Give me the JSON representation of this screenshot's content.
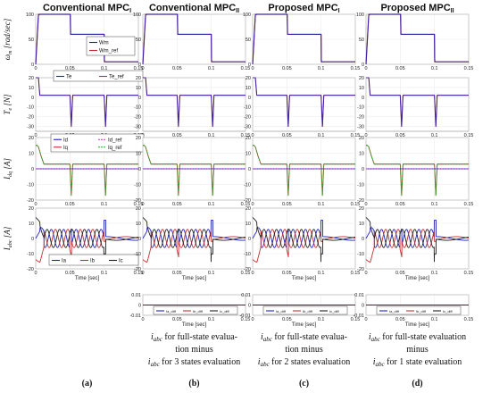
{
  "colors": {
    "blue": "#2020c0",
    "red": "#c03030",
    "dark": "#202020",
    "green": "#22aa22",
    "magenta": "#cc33cc"
  },
  "figure": {
    "columns": [
      {
        "title": "Conventional MPC",
        "subscript": "I",
        "letter": "(a)"
      },
      {
        "title": "Conventional MPC",
        "subscript": "II",
        "letter": "(b)"
      },
      {
        "title": "Proposed MPC",
        "subscript": "I",
        "letter": "(c)"
      },
      {
        "title": "Proposed MPC",
        "subscript": "II",
        "letter": "(d)"
      }
    ],
    "row_labels": [
      {
        "symbol": "ω",
        "sub": "m",
        "rest": " [rad/sec]"
      },
      {
        "symbol": "T",
        "sub": "e",
        "rest": " [N]"
      },
      {
        "symbol": "I",
        "sub": "dq",
        "rest": " [A]"
      },
      {
        "symbol": "I",
        "sub": "abc",
        "rest": " [A]"
      }
    ],
    "xlabel": "Time [sec]",
    "captions": [
      {
        "lines": [
          "full-state evalua-",
          "tion minus",
          "for 3 states evaluation"
        ]
      },
      {
        "lines": [
          "full-state evalua-",
          "tion minus",
          "for 2 states evaluation"
        ]
      },
      {
        "lines": [
          "full-state evaluation",
          "minus",
          "for 1 state evaluation"
        ]
      }
    ],
    "caption_symbol": "i",
    "caption_symbol_sub": "abc",
    "caption_for": "for"
  },
  "chart_data": [
    {
      "type": "line",
      "row": "speed",
      "xlim": [
        0,
        0.15
      ],
      "ylim": [
        0,
        100
      ],
      "xticks": [
        0,
        0.05,
        0.1,
        0.15
      ],
      "yticks": [
        0,
        50,
        100
      ],
      "series": [
        {
          "name": "Wm",
          "x": [
            0,
            0.004,
            0.006,
            0.02,
            0.0505,
            0.051,
            0.052,
            0.1,
            0.1003,
            0.101,
            0.15
          ],
          "y": [
            0,
            98,
            100,
            100,
            100,
            60,
            60,
            60,
            10,
            5,
            5
          ]
        },
        {
          "name": "Wm_ref",
          "x": [
            0,
            0.004,
            0.006,
            0.02,
            0.0505,
            0.051,
            0.052,
            0.1,
            0.1003,
            0.101,
            0.15
          ],
          "y": [
            0,
            100,
            100,
            100,
            100,
            60,
            60,
            60,
            5,
            5,
            5
          ]
        }
      ],
      "legend": "center-right"
    },
    {
      "type": "line",
      "row": "torque",
      "xlim": [
        0,
        0.15
      ],
      "ylim": [
        -35,
        20
      ],
      "xticks": [
        0,
        0.05,
        0.1,
        0.15
      ],
      "yticks": [
        -30,
        -20,
        -10,
        0,
        10,
        20
      ],
      "series": [
        {
          "name": "Te",
          "x": [
            0,
            0.001,
            0.004,
            0.006,
            0.048,
            0.05,
            0.052,
            0.054,
            0.098,
            0.1,
            0.102,
            0.104,
            0.15
          ],
          "y": [
            20,
            20,
            20,
            2,
            2,
            2,
            -30,
            2,
            2,
            2,
            -30,
            2,
            2
          ]
        },
        {
          "name": "Te_ref",
          "x": [
            0,
            0.001,
            0.004,
            0.006,
            0.048,
            0.05,
            0.052,
            0.054,
            0.098,
            0.1,
            0.102,
            0.104,
            0.15
          ],
          "y": [
            20,
            20,
            20,
            2,
            2,
            2,
            -30,
            2,
            2,
            2,
            -30,
            2,
            2
          ]
        }
      ],
      "legend": "top"
    },
    {
      "type": "line",
      "row": "dq-currents",
      "xlim": [
        0,
        0.15
      ],
      "ylim": [
        -20,
        20
      ],
      "xticks": [
        0,
        0.05,
        0.1,
        0.15
      ],
      "yticks": [
        -20,
        -10,
        0,
        10,
        20
      ],
      "series": [
        {
          "name": "Id",
          "x": [
            0,
            0.15
          ],
          "y": [
            0,
            0
          ]
        },
        {
          "name": "Iq",
          "x": [
            0,
            0.002,
            0.004,
            0.008,
            0.012,
            0.05,
            0.052,
            0.054,
            0.1,
            0.102,
            0.104,
            0.15
          ],
          "y": [
            15,
            15,
            14,
            8,
            3,
            3,
            -17,
            3,
            3,
            -17,
            3,
            3
          ]
        },
        {
          "name": "Id_ref",
          "x": [
            0,
            0.15
          ],
          "y": [
            0,
            0
          ]
        },
        {
          "name": "Iq_ref",
          "x": [
            0,
            0.002,
            0.004,
            0.008,
            0.012,
            0.05,
            0.052,
            0.054,
            0.1,
            0.102,
            0.104,
            0.15
          ],
          "y": [
            15,
            15,
            14,
            8,
            3,
            3,
            -17,
            3,
            3,
            -17,
            3,
            3
          ]
        }
      ],
      "legend": "top"
    },
    {
      "type": "line",
      "row": "abc-currents",
      "xlim": [
        0,
        0.15
      ],
      "ylim": [
        -20,
        20
      ],
      "xticks": [
        0,
        0.05,
        0.1,
        0.15
      ],
      "yticks": [
        -20,
        -10,
        0,
        10,
        20
      ],
      "series": [
        {
          "name": "Ia"
        },
        {
          "name": "Ib"
        },
        {
          "name": "Ic"
        }
      ],
      "legend": "bottom"
    },
    {
      "type": "line",
      "row": "abc-difference",
      "xlim": [
        0,
        0.15
      ],
      "ylim": [
        -0.01,
        0.01
      ],
      "xticks": [
        0,
        0.05,
        0.1,
        0.15
      ],
      "yticks": [
        -0.01,
        0,
        0.01
      ],
      "series": [
        {
          "name": "Ia_diff",
          "x": [
            0,
            0.15
          ],
          "y": [
            0,
            0
          ]
        },
        {
          "name": "Ib_diff",
          "x": [
            0,
            0.15
          ],
          "y": [
            0,
            0
          ]
        },
        {
          "name": "Ic_diff",
          "x": [
            0,
            0.15
          ],
          "y": [
            0,
            0
          ]
        }
      ],
      "legend": "bottom"
    }
  ]
}
